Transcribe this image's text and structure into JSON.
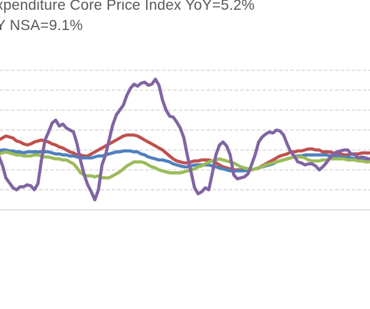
{
  "legend": {
    "line1": "xpenditure Core Price Index YoY=5.2%",
    "line2": "Y NSA=9.1%"
  },
  "colors": {
    "blue": "#4f81bd",
    "red": "#c0504d",
    "green": "#9bbb59",
    "purple": "#8064a2",
    "grid": "#d0d0d0",
    "axis": "#d9d9d9"
  },
  "chart_data": {
    "type": "line",
    "title": "",
    "xlabel": "",
    "ylabel": "",
    "grid": true,
    "x": [
      0,
      1,
      2,
      3,
      4,
      5,
      6,
      7,
      8,
      9,
      10,
      11,
      12,
      13,
      14,
      15,
      16,
      17,
      18,
      19,
      20,
      21,
      22,
      23,
      24,
      25,
      26,
      27,
      28,
      29,
      30,
      31,
      32,
      33,
      34,
      35,
      36,
      37,
      38,
      39,
      40,
      41,
      42,
      43,
      44,
      45,
      46,
      47,
      48,
      49,
      50,
      51,
      52,
      53,
      54,
      55,
      56,
      57,
      58,
      59,
      60,
      61,
      62,
      63,
      64,
      65,
      66,
      67,
      68,
      69,
      70,
      71,
      72,
      73,
      74,
      75,
      76,
      77,
      78,
      79,
      80,
      81,
      82,
      83,
      84,
      85,
      86,
      87,
      88,
      89,
      90,
      91,
      92,
      93,
      94,
      95,
      96,
      97,
      98,
      99,
      100,
      101,
      102,
      103,
      104,
      105,
      106
    ],
    "series": [
      {
        "color": "#c0504d",
        "values": [
          2.6,
          2.8,
          3.0,
          3.2,
          3.4,
          3.3,
          3.2,
          2.9,
          2.8,
          2.6,
          2.5,
          2.6,
          2.8,
          2.9,
          3.0,
          2.9,
          2.8,
          2.6,
          2.5,
          2.3,
          2.2,
          2.0,
          1.8,
          1.7,
          1.5,
          1.5,
          1.4,
          1.4,
          1.6,
          1.8,
          2.0,
          2.2,
          2.4,
          2.6,
          2.8,
          3.0,
          3.2,
          3.4,
          3.5,
          3.5,
          3.5,
          3.4,
          3.2,
          3.0,
          2.8,
          2.6,
          2.4,
          2.2,
          2.0,
          1.7,
          1.4,
          1.1,
          0.9,
          0.8,
          0.7,
          0.7,
          0.8,
          0.9,
          0.9,
          1.0,
          1.0,
          1.0,
          0.9,
          0.7,
          0.5,
          0.3,
          0.2,
          0.1,
          0.0,
          0.0,
          0.0,
          0.0,
          -0.1,
          0.0,
          0.1,
          0.2,
          0.4,
          0.6,
          0.8,
          1.0,
          1.2,
          1.4,
          1.5,
          1.6,
          1.8,
          1.8,
          1.9,
          1.9,
          2.0,
          2.1,
          2.1,
          2.0,
          2.0,
          1.8,
          1.8,
          1.8,
          1.7,
          1.7,
          1.6,
          1.5,
          1.5,
          1.6,
          1.6,
          1.6,
          1.7,
          1.7,
          1.7
        ]
      },
      {
        "color": "#4f81bd",
        "values": [
          1.8,
          1.8,
          1.9,
          2.0,
          2.0,
          1.9,
          1.9,
          1.8,
          1.8,
          1.7,
          1.8,
          1.8,
          1.8,
          1.8,
          1.8,
          1.8,
          1.8,
          1.7,
          1.6,
          1.6,
          1.5,
          1.5,
          1.4,
          1.4,
          1.3,
          1.2,
          1.2,
          1.2,
          1.2,
          1.3,
          1.4,
          1.4,
          1.5,
          1.6,
          1.7,
          1.8,
          1.8,
          1.9,
          1.9,
          1.9,
          1.8,
          1.8,
          1.6,
          1.5,
          1.3,
          1.2,
          1.1,
          1.0,
          1.0,
          0.9,
          0.8,
          0.6,
          0.5,
          0.4,
          0.3,
          0.3,
          0.4,
          0.5,
          0.5,
          0.5,
          0.5,
          0.5,
          0.4,
          0.3,
          0.2,
          0.1,
          0.0,
          -0.1,
          -0.1,
          -0.1,
          -0.1,
          -0.1,
          0.0,
          0.0,
          0.1,
          0.2,
          0.3,
          0.4,
          0.5,
          0.6,
          0.8,
          0.9,
          1.0,
          1.1,
          1.2,
          1.3,
          1.4,
          1.4,
          1.5,
          1.5,
          1.5,
          1.5,
          1.5,
          1.5,
          1.5,
          1.4,
          1.4,
          1.4,
          1.3,
          1.3,
          1.3,
          1.2,
          1.1,
          1.1,
          1.1,
          1.1,
          1.1
        ]
      },
      {
        "color": "#9bbb59",
        "values": [
          1.4,
          1.5,
          1.6,
          1.7,
          1.8,
          1.7,
          1.6,
          1.5,
          1.5,
          1.4,
          1.4,
          1.4,
          1.5,
          1.5,
          1.4,
          1.3,
          1.3,
          1.2,
          1.1,
          1.1,
          1.0,
          1.0,
          0.8,
          0.6,
          0.2,
          -0.3,
          -0.5,
          -0.6,
          -0.6,
          -0.7,
          -0.6,
          -0.8,
          -0.8,
          -0.8,
          -0.6,
          -0.4,
          -0.2,
          0.1,
          0.4,
          0.6,
          0.8,
          0.8,
          0.8,
          0.7,
          0.5,
          0.3,
          0.2,
          0.0,
          -0.1,
          -0.2,
          -0.3,
          -0.3,
          -0.3,
          -0.3,
          -0.2,
          -0.1,
          0.0,
          0.1,
          0.3,
          0.4,
          0.6,
          0.8,
          0.9,
          1.0,
          1.1,
          1.0,
          0.9,
          0.8,
          0.7,
          0.5,
          0.3,
          0.2,
          0.1,
          0.0,
          0.1,
          0.2,
          0.3,
          0.5,
          0.6,
          0.7,
          0.8,
          0.9,
          1.0,
          1.1,
          1.2,
          1.3,
          1.3,
          1.3,
          1.2,
          1.0,
          0.9,
          0.9,
          0.9,
          1.0,
          1.0,
          1.1,
          1.1,
          1.1,
          1.1,
          1.1,
          1.0,
          1.0,
          1.0,
          0.9,
          0.9,
          0.8,
          0.8
        ]
      },
      {
        "color": "#8064a2",
        "values": [
          2.7,
          2.0,
          1.4,
          0.5,
          -0.8,
          -1.3,
          -1.8,
          -2.0,
          -1.7,
          -1.7,
          -1.5,
          -1.6,
          -2.0,
          -1.4,
          1.0,
          3.0,
          3.8,
          4.7,
          5.0,
          4.4,
          4.6,
          4.2,
          4.0,
          3.8,
          2.6,
          0.9,
          -0.5,
          -1.5,
          -2.2,
          -3.0,
          -2.0,
          0.5,
          1.5,
          3.0,
          4.5,
          5.5,
          6.0,
          6.5,
          7.5,
          8.2,
          8.6,
          8.4,
          8.7,
          8.8,
          8.5,
          8.6,
          9.1,
          8.5,
          7.0,
          6.0,
          5.4,
          5.3,
          4.8,
          4.2,
          3.2,
          1.4,
          -0.2,
          -1.8,
          -2.4,
          -2.2,
          -1.8,
          -2.0,
          -0.3,
          1.5,
          2.5,
          2.8,
          2.4,
          1.5,
          -0.5,
          -0.9,
          -0.8,
          -0.7,
          -0.4,
          0.5,
          1.5,
          2.8,
          3.3,
          3.6,
          3.8,
          3.7,
          4.0,
          3.9,
          3.5,
          2.6,
          1.8,
          1.4,
          0.8,
          0.7,
          0.5,
          0.6,
          0.6,
          0.4,
          0.0,
          0.3,
          0.7,
          1.2,
          1.6,
          1.8,
          1.9,
          2.0,
          2.0,
          1.6,
          1.5,
          1.2,
          1.3,
          1.2,
          1.1
        ]
      }
    ]
  }
}
